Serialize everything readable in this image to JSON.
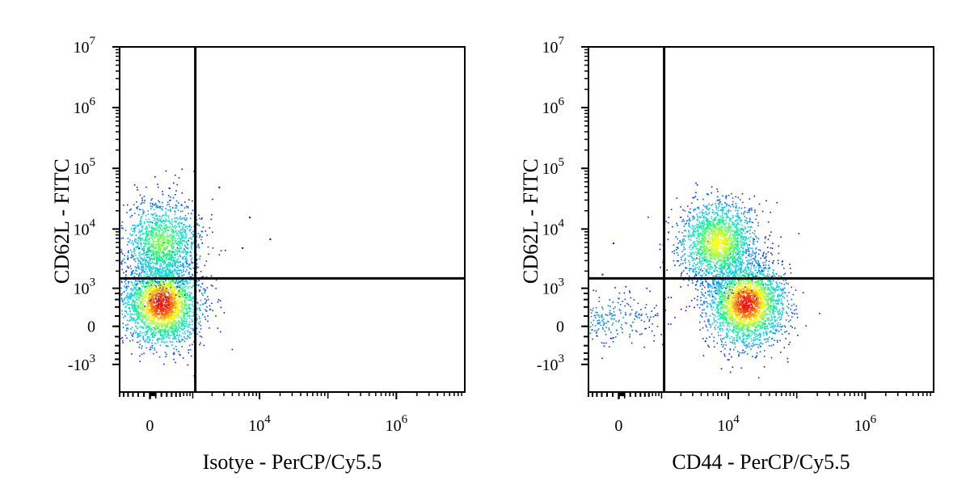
{
  "chart_data": [
    {
      "type": "scatter",
      "density_colormap": [
        "#0000ff",
        "#00c8ff",
        "#00ff80",
        "#ffff00",
        "#ff0000"
      ],
      "xlabel": "Isotye - PerCP/Cy5.5",
      "ylabel": "CD62L - FITC",
      "x_scale": "biexponential",
      "y_scale": "biexponential",
      "xlim": [
        -600,
        10000000
      ],
      "ylim": [
        -3000,
        10000000
      ],
      "x_ticks": [
        {
          "value": 0,
          "base": "0",
          "exp": ""
        },
        {
          "value": 10000,
          "base": "10",
          "exp": "4"
        },
        {
          "value": 1000000,
          "base": "10",
          "exp": "6"
        }
      ],
      "y_ticks": [
        {
          "value": -1000,
          "base": "-10",
          "exp": "3"
        },
        {
          "value": 0,
          "base": "0",
          "exp": ""
        },
        {
          "value": 1000,
          "base": "10",
          "exp": "3"
        },
        {
          "value": 10000,
          "base": "10",
          "exp": "4"
        },
        {
          "value": 100000,
          "base": "10",
          "exp": "5"
        },
        {
          "value": 1000000,
          "base": "10",
          "exp": "6"
        },
        {
          "value": 10000000,
          "base": "10",
          "exp": "7"
        }
      ],
      "quadrant_gate": {
        "x": 1100,
        "y": 1500
      },
      "populations": [
        {
          "x_center": 200,
          "y_center": 500,
          "relative_density": 1.0
        },
        {
          "x_center": 200,
          "y_center": 6000,
          "relative_density": 0.55
        }
      ],
      "scattered_outliers": [
        {
          "x": 7000,
          "y": 16000
        },
        {
          "x": 14000,
          "y": 7000
        },
        {
          "x": 5500,
          "y": 5000
        },
        {
          "x": 2500,
          "y": 50000
        }
      ]
    },
    {
      "type": "scatter",
      "density_colormap": [
        "#0000ff",
        "#00c8ff",
        "#00ff80",
        "#ffff00",
        "#ff0000"
      ],
      "xlabel": "CD44 - PerCP/Cy5.5",
      "ylabel": "CD62L - FITC",
      "x_scale": "biexponential",
      "y_scale": "biexponential",
      "xlim": [
        -600,
        10000000
      ],
      "ylim": [
        -3000,
        10000000
      ],
      "x_ticks": [
        {
          "value": 0,
          "base": "0",
          "exp": ""
        },
        {
          "value": 10000,
          "base": "10",
          "exp": "4"
        },
        {
          "value": 1000000,
          "base": "10",
          "exp": "6"
        }
      ],
      "y_ticks": [
        {
          "value": -1000,
          "base": "-10",
          "exp": "3"
        },
        {
          "value": 0,
          "base": "0",
          "exp": ""
        },
        {
          "value": 1000,
          "base": "10",
          "exp": "3"
        },
        {
          "value": 10000,
          "base": "10",
          "exp": "4"
        },
        {
          "value": 100000,
          "base": "10",
          "exp": "5"
        },
        {
          "value": 1000000,
          "base": "10",
          "exp": "6"
        },
        {
          "value": 10000000,
          "base": "10",
          "exp": "7"
        }
      ],
      "quadrant_gate": {
        "x": 1100,
        "y": 1500
      },
      "populations": [
        {
          "x_center": 18000,
          "y_center": 500,
          "relative_density": 1.0
        },
        {
          "x_center": 7000,
          "y_center": 6000,
          "relative_density": 0.7
        },
        {
          "x_center": -250,
          "y_center": 150,
          "relative_density": 0.12
        }
      ],
      "scattered_outliers": [
        {
          "x": -100,
          "y": 6000
        },
        {
          "x": -300,
          "y": 1800
        },
        {
          "x": 60000,
          "y": 3000
        }
      ]
    }
  ]
}
